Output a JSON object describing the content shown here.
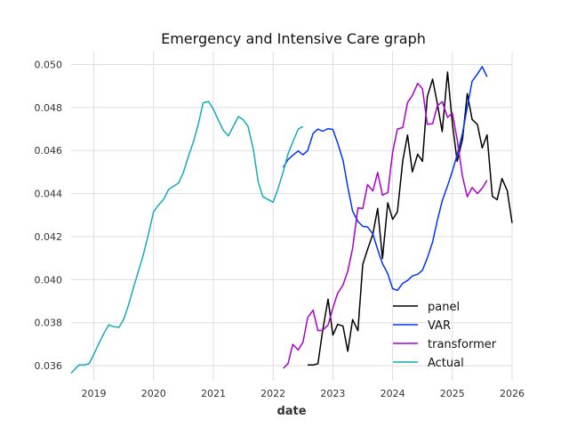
{
  "chart_data": {
    "type": "line",
    "title": "Emergency and Intensive Care graph",
    "xlabel": "date",
    "ylabel": "",
    "xlim": [
      2018.62,
      2026.0
    ],
    "ylim": [
      0.0353,
      0.0506
    ],
    "x_ticks": [
      2019,
      2020,
      2021,
      2022,
      2023,
      2024,
      2025,
      2026
    ],
    "x_tick_labels": [
      "2019",
      "2020",
      "2021",
      "2022",
      "2023",
      "2024",
      "2025",
      "2026"
    ],
    "y_ticks": [
      0.036,
      0.038,
      0.04,
      0.042,
      0.044,
      0.046,
      0.048,
      0.05
    ],
    "y_tick_labels": [
      "0.036",
      "0.038",
      "0.040",
      "0.042",
      "0.044",
      "0.046",
      "0.048",
      "0.050"
    ],
    "grid": true,
    "legend_position": "lower-right",
    "series": [
      {
        "name": "panel",
        "color": "#000000",
        "points": [
          [
            2022.58,
            0.03603
          ],
          [
            2022.67,
            0.03603
          ],
          [
            2022.75,
            0.03609
          ],
          [
            2022.83,
            0.03763
          ],
          [
            2022.92,
            0.03909
          ],
          [
            2023.0,
            0.03742
          ],
          [
            2023.08,
            0.03792
          ],
          [
            2023.17,
            0.03784
          ],
          [
            2023.25,
            0.03667
          ],
          [
            2023.33,
            0.03814
          ],
          [
            2023.42,
            0.03763
          ],
          [
            2023.5,
            0.0407
          ],
          [
            2023.58,
            0.0414
          ],
          [
            2023.67,
            0.04212
          ],
          [
            2023.75,
            0.04331
          ],
          [
            2023.83,
            0.04098
          ],
          [
            2023.92,
            0.04357
          ],
          [
            2024.0,
            0.0428
          ],
          [
            2024.08,
            0.04315
          ],
          [
            2024.17,
            0.04552
          ],
          [
            2024.25,
            0.04672
          ],
          [
            2024.33,
            0.04501
          ],
          [
            2024.42,
            0.04583
          ],
          [
            2024.5,
            0.0455
          ],
          [
            2024.58,
            0.0485
          ],
          [
            2024.67,
            0.04932
          ],
          [
            2024.75,
            0.04816
          ],
          [
            2024.83,
            0.04688
          ],
          [
            2024.92,
            0.04965
          ],
          [
            2025.0,
            0.04726
          ],
          [
            2025.08,
            0.0455
          ],
          [
            2025.17,
            0.04652
          ],
          [
            2025.25,
            0.04865
          ],
          [
            2025.33,
            0.04745
          ],
          [
            2025.42,
            0.04721
          ],
          [
            2025.5,
            0.04612
          ],
          [
            2025.58,
            0.04673
          ],
          [
            2025.67,
            0.04387
          ],
          [
            2025.75,
            0.04372
          ],
          [
            2025.83,
            0.0447
          ],
          [
            2025.92,
            0.04413
          ],
          [
            2026.0,
            0.04263
          ]
        ]
      },
      {
        "name": "VAR",
        "color": "#0033ff",
        "points": [
          [
            2022.17,
            0.04522
          ],
          [
            2022.25,
            0.04558
          ],
          [
            2022.33,
            0.04578
          ],
          [
            2022.42,
            0.04598
          ],
          [
            2022.5,
            0.0458
          ],
          [
            2022.58,
            0.046
          ],
          [
            2022.67,
            0.0468
          ],
          [
            2022.75,
            0.047
          ],
          [
            2022.83,
            0.0469
          ],
          [
            2022.92,
            0.04702
          ],
          [
            2023.0,
            0.04698
          ],
          [
            2023.08,
            0.04635
          ],
          [
            2023.17,
            0.04555
          ],
          [
            2023.25,
            0.0443
          ],
          [
            2023.33,
            0.04318
          ],
          [
            2023.42,
            0.0427
          ],
          [
            2023.5,
            0.04248
          ],
          [
            2023.58,
            0.04245
          ],
          [
            2023.67,
            0.04212
          ],
          [
            2023.75,
            0.0414
          ],
          [
            2023.83,
            0.04074
          ],
          [
            2023.92,
            0.04027
          ],
          [
            2024.0,
            0.03958
          ],
          [
            2024.08,
            0.0395
          ],
          [
            2024.17,
            0.03983
          ],
          [
            2024.25,
            0.03996
          ],
          [
            2024.33,
            0.04017
          ],
          [
            2024.42,
            0.04025
          ],
          [
            2024.5,
            0.04044
          ],
          [
            2024.58,
            0.041
          ],
          [
            2024.67,
            0.04175
          ],
          [
            2024.75,
            0.04277
          ],
          [
            2024.83,
            0.04366
          ],
          [
            2024.92,
            0.04436
          ],
          [
            2025.0,
            0.04504
          ],
          [
            2025.08,
            0.0458
          ],
          [
            2025.17,
            0.0468
          ],
          [
            2025.25,
            0.04802
          ],
          [
            2025.33,
            0.04922
          ],
          [
            2025.42,
            0.04956
          ],
          [
            2025.5,
            0.0499
          ],
          [
            2025.58,
            0.04943
          ]
        ]
      },
      {
        "name": "transformer",
        "color": "#aa00cc",
        "points": [
          [
            2022.17,
            0.03588
          ],
          [
            2022.25,
            0.0361
          ],
          [
            2022.33,
            0.03699
          ],
          [
            2022.42,
            0.03673
          ],
          [
            2022.5,
            0.03709
          ],
          [
            2022.58,
            0.03824
          ],
          [
            2022.67,
            0.03858
          ],
          [
            2022.75,
            0.03763
          ],
          [
            2022.83,
            0.03765
          ],
          [
            2022.92,
            0.03789
          ],
          [
            2023.0,
            0.03868
          ],
          [
            2023.08,
            0.03937
          ],
          [
            2023.17,
            0.03975
          ],
          [
            2023.25,
            0.0404
          ],
          [
            2023.33,
            0.04145
          ],
          [
            2023.42,
            0.04334
          ],
          [
            2023.5,
            0.0433
          ],
          [
            2023.58,
            0.04442
          ],
          [
            2023.67,
            0.04412
          ],
          [
            2023.75,
            0.04498
          ],
          [
            2023.83,
            0.04393
          ],
          [
            2023.92,
            0.04404
          ],
          [
            2024.0,
            0.04592
          ],
          [
            2024.08,
            0.047
          ],
          [
            2024.17,
            0.04707
          ],
          [
            2024.25,
            0.04823
          ],
          [
            2024.33,
            0.04856
          ],
          [
            2024.42,
            0.04912
          ],
          [
            2024.5,
            0.04887
          ],
          [
            2024.58,
            0.04722
          ],
          [
            2024.67,
            0.04725
          ],
          [
            2024.75,
            0.04808
          ],
          [
            2024.83,
            0.04827
          ],
          [
            2024.92,
            0.04754
          ],
          [
            2025.0,
            0.04774
          ],
          [
            2025.08,
            0.04652
          ],
          [
            2025.17,
            0.0448
          ],
          [
            2025.25,
            0.04385
          ],
          [
            2025.33,
            0.04428
          ],
          [
            2025.42,
            0.044
          ],
          [
            2025.5,
            0.04425
          ],
          [
            2025.58,
            0.04462
          ]
        ]
      },
      {
        "name": "Actual",
        "color": "#17aab8",
        "points": [
          [
            2018.62,
            0.03565
          ],
          [
            2018.67,
            0.0358
          ],
          [
            2018.75,
            0.03603
          ],
          [
            2018.83,
            0.03603
          ],
          [
            2018.92,
            0.03609
          ],
          [
            2019.0,
            0.03652
          ],
          [
            2019.08,
            0.03701
          ],
          [
            2019.17,
            0.03751
          ],
          [
            2019.25,
            0.0379
          ],
          [
            2019.33,
            0.03781
          ],
          [
            2019.42,
            0.03778
          ],
          [
            2019.5,
            0.03815
          ],
          [
            2019.58,
            0.03881
          ],
          [
            2019.67,
            0.03969
          ],
          [
            2019.75,
            0.04042
          ],
          [
            2019.83,
            0.04117
          ],
          [
            2019.92,
            0.04219
          ],
          [
            2020.0,
            0.04315
          ],
          [
            2020.08,
            0.04346
          ],
          [
            2020.17,
            0.04374
          ],
          [
            2020.25,
            0.04419
          ],
          [
            2020.33,
            0.04433
          ],
          [
            2020.42,
            0.0445
          ],
          [
            2020.5,
            0.045
          ],
          [
            2020.58,
            0.04571
          ],
          [
            2020.67,
            0.04643
          ],
          [
            2020.75,
            0.04725
          ],
          [
            2020.83,
            0.04822
          ],
          [
            2020.92,
            0.04828
          ],
          [
            2021.0,
            0.04792
          ],
          [
            2021.08,
            0.04744
          ],
          [
            2021.17,
            0.04693
          ],
          [
            2021.25,
            0.04668
          ],
          [
            2021.33,
            0.0471
          ],
          [
            2021.42,
            0.04758
          ],
          [
            2021.5,
            0.04743
          ],
          [
            2021.58,
            0.04713
          ],
          [
            2021.67,
            0.04605
          ],
          [
            2021.75,
            0.04455
          ],
          [
            2021.83,
            0.04385
          ],
          [
            2021.92,
            0.04372
          ],
          [
            2022.0,
            0.0436
          ],
          [
            2022.08,
            0.0442
          ],
          [
            2022.17,
            0.04502
          ],
          [
            2022.25,
            0.04585
          ],
          [
            2022.33,
            0.04639
          ],
          [
            2022.42,
            0.047
          ],
          [
            2022.5,
            0.04712
          ]
        ]
      }
    ]
  }
}
